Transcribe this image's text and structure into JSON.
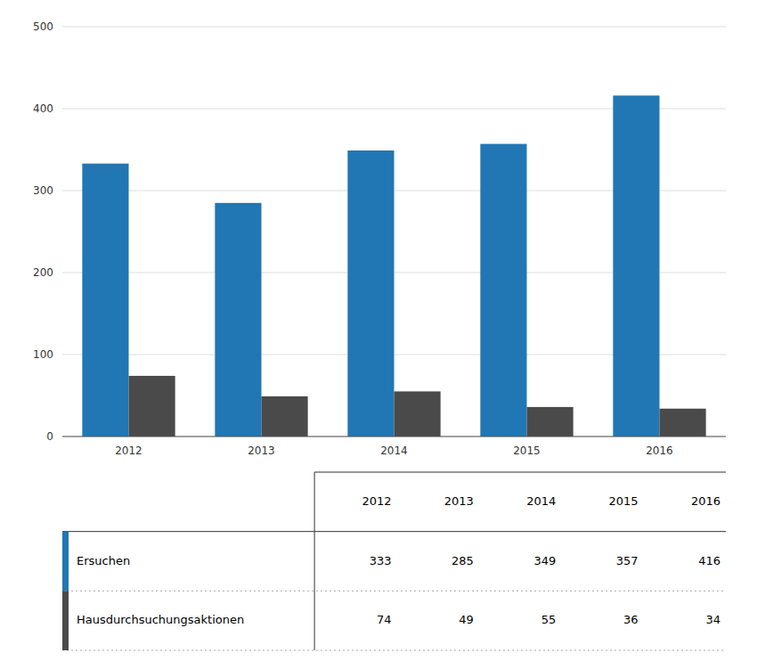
{
  "chart_data": {
    "type": "bar",
    "categories": [
      "2012",
      "2013",
      "2014",
      "2015",
      "2016"
    ],
    "series": [
      {
        "name": "Ersuchen",
        "color": "#2077B4",
        "values": [
          333,
          285,
          349,
          357,
          416
        ]
      },
      {
        "name": "Hausdurchsuchungsaktionen",
        "color": "#4A4A4A",
        "values": [
          74,
          49,
          55,
          36,
          34
        ]
      }
    ],
    "ylim": [
      0,
      500
    ],
    "yticks": [
      0,
      100,
      200,
      300,
      400,
      500
    ],
    "grid": true
  }
}
